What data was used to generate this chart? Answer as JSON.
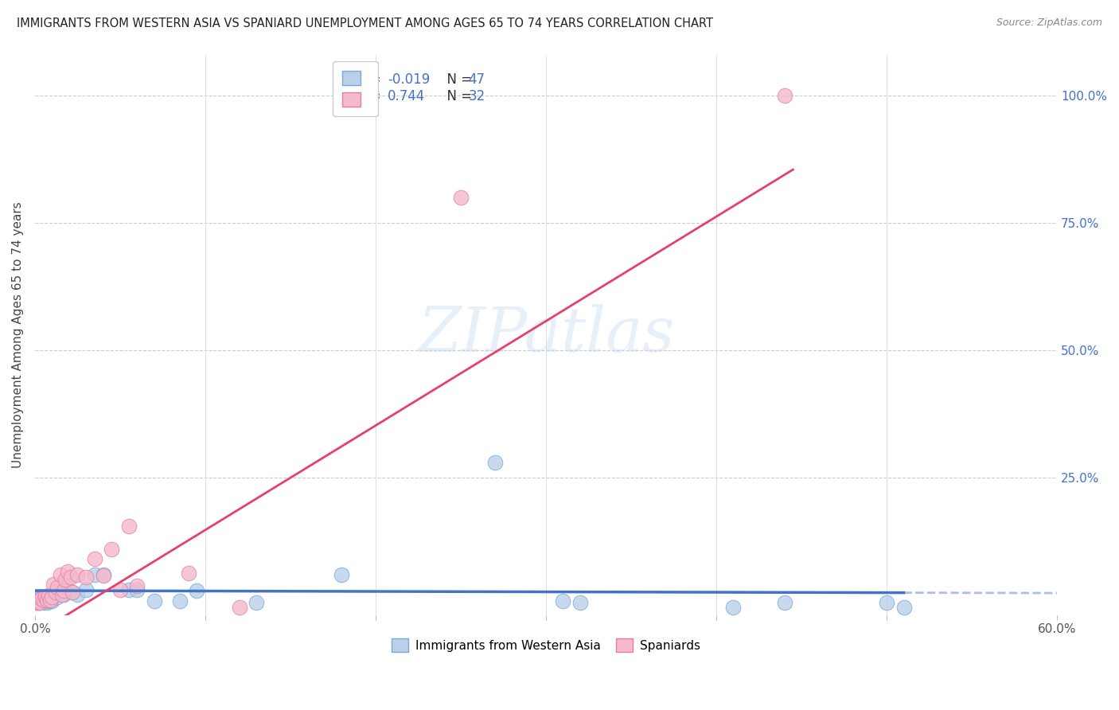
{
  "title": "IMMIGRANTS FROM WESTERN ASIA VS SPANIARD UNEMPLOYMENT AMONG AGES 65 TO 74 YEARS CORRELATION CHART",
  "source": "Source: ZipAtlas.com",
  "ylabel": "Unemployment Among Ages 65 to 74 years",
  "xlim": [
    0.0,
    0.6
  ],
  "ylim": [
    -0.02,
    1.08
  ],
  "xtick_positions": [
    0.0,
    0.1,
    0.2,
    0.3,
    0.4,
    0.5,
    0.6
  ],
  "xtick_labels": [
    "0.0%",
    "",
    "",
    "",
    "",
    "",
    "60.0%"
  ],
  "ytick_right_positions": [
    0.25,
    0.5,
    0.75,
    1.0
  ],
  "ytick_right_labels": [
    "25.0%",
    "50.0%",
    "75.0%",
    "100.0%"
  ],
  "blue_R": -0.019,
  "blue_N": 47,
  "pink_R": 0.744,
  "pink_N": 32,
  "blue_scatter_color": "#b8d0ea",
  "blue_edge_color": "#7aaad0",
  "pink_scatter_color": "#f5b8cc",
  "pink_edge_color": "#e080a8",
  "blue_line_color": "#4472C4",
  "pink_line_color": "#e8406a",
  "blue_x": [
    0.001,
    0.001,
    0.002,
    0.002,
    0.002,
    0.003,
    0.003,
    0.003,
    0.004,
    0.004,
    0.005,
    0.005,
    0.005,
    0.006,
    0.006,
    0.007,
    0.007,
    0.008,
    0.008,
    0.009,
    0.01,
    0.01,
    0.011,
    0.012,
    0.013,
    0.015,
    0.017,
    0.02,
    0.022,
    0.025,
    0.03,
    0.035,
    0.04,
    0.055,
    0.06,
    0.07,
    0.085,
    0.095,
    0.13,
    0.18,
    0.27,
    0.31,
    0.41,
    0.5,
    0.51,
    0.32,
    0.44
  ],
  "blue_y": [
    0.005,
    0.01,
    0.005,
    0.01,
    0.015,
    0.005,
    0.008,
    0.012,
    0.008,
    0.015,
    0.005,
    0.01,
    0.015,
    0.008,
    0.012,
    0.005,
    0.012,
    0.008,
    0.015,
    0.01,
    0.008,
    0.015,
    0.012,
    0.02,
    0.015,
    0.025,
    0.02,
    0.028,
    0.025,
    0.02,
    0.03,
    0.06,
    0.06,
    0.03,
    0.03,
    0.008,
    0.008,
    0.028,
    0.005,
    0.06,
    0.28,
    0.008,
    -0.005,
    0.005,
    -0.005,
    0.005,
    0.005
  ],
  "pink_x": [
    0.001,
    0.002,
    0.003,
    0.004,
    0.005,
    0.006,
    0.007,
    0.008,
    0.009,
    0.01,
    0.011,
    0.012,
    0.013,
    0.015,
    0.016,
    0.017,
    0.018,
    0.019,
    0.021,
    0.022,
    0.025,
    0.03,
    0.035,
    0.04,
    0.045,
    0.05,
    0.055,
    0.06,
    0.09,
    0.12,
    0.25,
    0.44
  ],
  "pink_y": [
    0.005,
    0.008,
    0.005,
    0.012,
    0.01,
    0.015,
    0.01,
    0.018,
    0.01,
    0.015,
    0.04,
    0.025,
    0.035,
    0.06,
    0.02,
    0.028,
    0.05,
    0.065,
    0.055,
    0.025,
    0.06,
    0.055,
    0.09,
    0.058,
    0.11,
    0.03,
    0.155,
    0.038,
    0.063,
    -0.005,
    0.8,
    1.0
  ],
  "blue_line_intercept": 0.028,
  "blue_line_slope": -0.008,
  "blue_line_x_solid_end": 0.51,
  "pink_line_intercept": -0.058,
  "pink_line_slope": 2.05,
  "pink_line_x_end": 0.445,
  "watermark_text": "ZIPatlas",
  "legend_blue_label": "Immigrants from Western Asia",
  "legend_pink_label": "Spaniards",
  "grid_color": "#cccccc",
  "vgrid_color": "#e0e0e0",
  "background_color": "#ffffff",
  "legend_R_color": "#4472C4",
  "legend_N_color": "#4472C4",
  "legend_text_color": "#333333"
}
